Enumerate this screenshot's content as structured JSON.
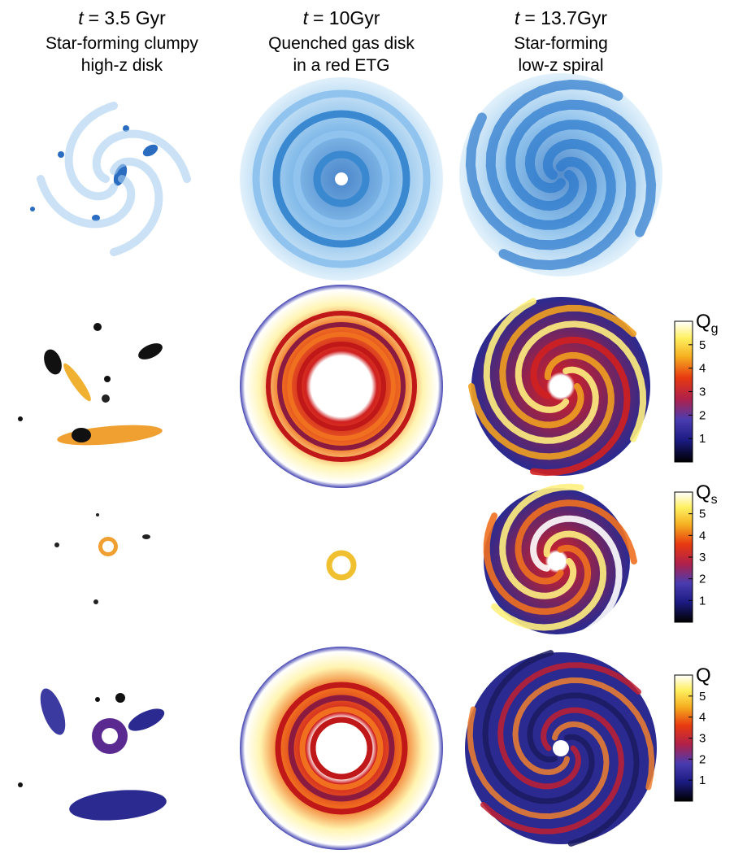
{
  "columns": [
    {
      "variable": "t",
      "time": "= 3.5 Gyr",
      "caption": [
        "Star-forming clumpy",
        "high-z disk"
      ]
    },
    {
      "variable": "t",
      "time": "= 10Gyr",
      "caption": [
        "Quenched gas disk",
        "in a red ETG"
      ]
    },
    {
      "variable": "t",
      "time": "= 13.7Gyr",
      "caption": [
        "Star-forming",
        "low-z spiral"
      ]
    }
  ],
  "colorbars": [
    {
      "symbol": "Q",
      "subscript": "g",
      "range": [
        0,
        6
      ],
      "ticks": [
        1,
        2,
        3,
        4,
        5
      ]
    },
    {
      "symbol": "Q",
      "subscript": "s",
      "range": [
        0,
        6
      ],
      "ticks": [
        1,
        2,
        3,
        4,
        5
      ]
    },
    {
      "symbol": "Q",
      "range": [
        0,
        6
      ],
      "ticks": [
        1,
        2,
        3,
        4,
        5
      ]
    }
  ]
}
